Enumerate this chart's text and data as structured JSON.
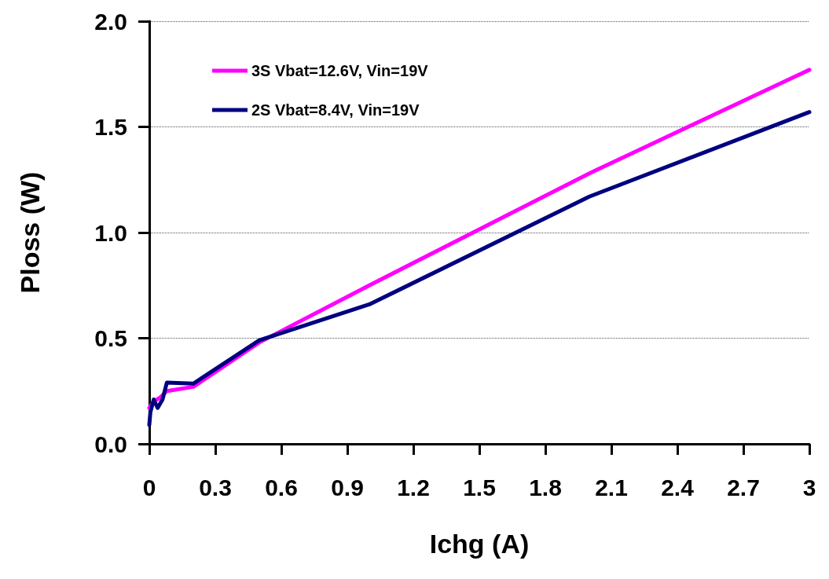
{
  "chart_data": {
    "type": "line",
    "xlabel": "Ichg (A)",
    "ylabel": "Ploss (W)",
    "xlim": [
      0,
      3
    ],
    "xticks": [
      0,
      0.3,
      0.6,
      0.9,
      1.2,
      1.5,
      1.8,
      2.1,
      2.4,
      2.7,
      3
    ],
    "ylim": [
      0,
      2
    ],
    "yticks": [
      {
        "value": 0,
        "label": "0.0"
      },
      {
        "value": 0.5,
        "label": "0.5"
      },
      {
        "value": 1,
        "label": "1.0"
      },
      {
        "value": 1.5,
        "label": "1.5"
      },
      {
        "value": 2,
        "label": "2.0"
      }
    ],
    "grid": "y",
    "legend": "top left",
    "marker": "none",
    "line_style": "solid",
    "series": [
      {
        "name": "3S Vbat=12.6V, Vin=19V",
        "color": "#ff00ff",
        "x": [
          0,
          0.02,
          0.05,
          0.08,
          0.2,
          0.5,
          1,
          2,
          3
        ],
        "values": [
          0.17,
          0.2,
          0.22,
          0.25,
          0.27,
          0.48,
          0.75,
          1.28,
          1.77
        ]
      },
      {
        "name": "2S Vbat=8.4V, Vin=19V",
        "color": "#000080",
        "x": [
          0,
          0.005,
          0.02,
          0.038,
          0.06,
          0.08,
          0.2,
          0.5,
          1,
          2,
          3
        ],
        "values": [
          0.09,
          0.15,
          0.21,
          0.17,
          0.21,
          0.29,
          0.285,
          0.49,
          0.66,
          1.17,
          1.57
        ]
      }
    ]
  }
}
